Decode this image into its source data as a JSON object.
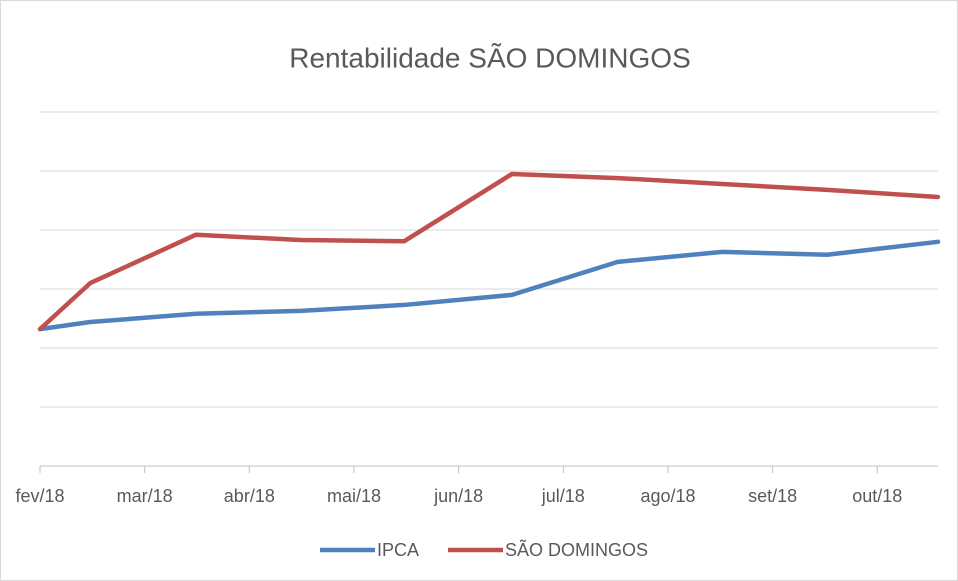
{
  "chart_data": {
    "type": "line",
    "title": "Rentabilidade SÃO DOMINGOS",
    "x": [
      0,
      0.48,
      1.49,
      2.49,
      3.48,
      4.51,
      5.52,
      6.52,
      7.52,
      8.58
    ],
    "xlim": [
      0,
      8.58
    ],
    "xticks": [
      {
        "value": 0,
        "label": "fev/18"
      },
      {
        "value": 1,
        "label": "mar/18"
      },
      {
        "value": 2,
        "label": "abr/18"
      },
      {
        "value": 3,
        "label": "mai/18"
      },
      {
        "value": 4,
        "label": "jun/18"
      },
      {
        "value": 5,
        "label": "jul/18"
      },
      {
        "value": 6,
        "label": "ago/18"
      },
      {
        "value": 7,
        "label": "set/18"
      },
      {
        "value": 8,
        "label": "out/18"
      }
    ],
    "ylim": [
      0,
      6
    ],
    "yticks": [
      0,
      1,
      2,
      3,
      4,
      5,
      6
    ],
    "grid": true,
    "series": [
      {
        "name": "IPCA",
        "color": "#4f81bd",
        "values": [
          2.32,
          2.44,
          2.58,
          2.63,
          2.73,
          2.9,
          3.46,
          3.63,
          3.58,
          3.8
        ]
      },
      {
        "name": "SÃO DOMINGOS",
        "color": "#c0504d",
        "values": [
          2.32,
          3.1,
          3.92,
          3.83,
          3.81,
          4.95,
          4.88,
          4.78,
          4.68,
          4.56
        ]
      }
    ]
  }
}
